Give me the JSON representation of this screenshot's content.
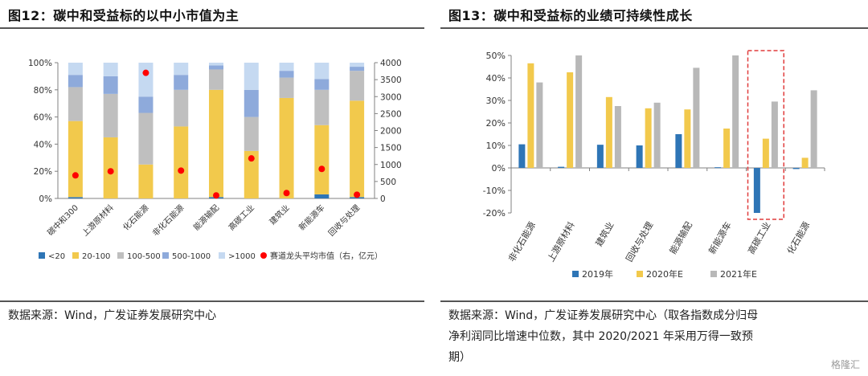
{
  "left": {
    "title": "图12：碳中和受益标的以中小市值为主",
    "source": "数据来源：Wind，广发证券发展研究中心",
    "colors": {
      "lt20": "#2e75b6",
      "c20_100": "#f2c94c",
      "c100_500": "#bfbfbf",
      "c500_1000": "#8eaadb",
      "gt1000": "#c5d9f1",
      "dot": "#ff0000"
    }
  },
  "right": {
    "title": "图13：碳中和受益标的业绩可持续性成长",
    "source_lines": [
      "数据来源：Wind，广发证券发展研究中心（取各指数成分归母",
      "净利润同比增速中位数，其中 2020/2021 年采用万得一致预",
      "期）"
    ],
    "colors": {
      "s2019": "#2e75b6",
      "s2020": "#f2c94c",
      "s2021": "#b8b8b8",
      "highlight": "#e03c3c"
    }
  },
  "watermark": "格隆汇",
  "chart_data": [
    {
      "type": "bar",
      "stacked": true,
      "title": "碳中和受益标的以中小市值为主",
      "categories": [
        "碳中和300",
        "上游原材料",
        "化石能源",
        "非化石能源",
        "能源输配",
        "高碳工业",
        "建筑业",
        "新能源车",
        "回收与处理"
      ],
      "series": [
        {
          "name": "<20",
          "values": [
            1,
            0,
            0,
            0,
            1,
            0,
            0,
            3,
            1
          ]
        },
        {
          "name": "20-100",
          "values": [
            56,
            45,
            25,
            53,
            79,
            35,
            74,
            51,
            71
          ]
        },
        {
          "name": "100-500",
          "values": [
            25,
            32,
            38,
            27,
            15,
            25,
            15,
            26,
            22
          ]
        },
        {
          "name": "500-1000",
          "values": [
            9,
            13,
            12,
            11,
            3,
            20,
            5,
            8,
            3
          ]
        },
        {
          "name": ">1000",
          "values": [
            9,
            10,
            25,
            9,
            2,
            20,
            6,
            12,
            3
          ]
        }
      ],
      "secondary_series": {
        "name": "赛道龙头平均市值（右，亿元）",
        "type": "scatter",
        "values": [
          680,
          800,
          3700,
          820,
          90,
          1180,
          160,
          870,
          110
        ]
      },
      "yticks_left": [
        "0%",
        "20%",
        "40%",
        "60%",
        "80%",
        "100%"
      ],
      "yticks_right": [
        "0",
        "500",
        "1000",
        "1500",
        "2000",
        "2500",
        "3000",
        "3500",
        "4000"
      ],
      "ylim": [
        0,
        100
      ],
      "ylim_right": [
        0,
        4000
      ],
      "legend": [
        "<20",
        "20-100",
        "100-500",
        "500-1000",
        ">1000",
        "赛道龙头平均市值（右，亿元）"
      ],
      "legend_position": "bottom"
    },
    {
      "type": "bar",
      "title": "碳中和受益标的业绩可持续性成长",
      "categories": [
        "非化石能源",
        "上游原材料",
        "建筑业",
        "回收与处理",
        "能源输配",
        "新能源车",
        "高碳工业",
        "化石能源"
      ],
      "series": [
        {
          "name": "2019年",
          "values": [
            10.5,
            0.5,
            10.3,
            10.0,
            15.0,
            0.3,
            -20.0,
            -0.5
          ]
        },
        {
          "name": "2020年E",
          "values": [
            46.5,
            42.5,
            31.5,
            26.5,
            26.0,
            17.5,
            13.0,
            4.5
          ]
        },
        {
          "name": "2021年E",
          "values": [
            38.0,
            50.0,
            27.5,
            29.0,
            44.5,
            50.0,
            29.5,
            34.5
          ]
        }
      ],
      "yticks": [
        "-20%",
        "-10%",
        "0%",
        "10%",
        "20%",
        "30%",
        "40%",
        "50%"
      ],
      "ylim": [
        -20,
        50
      ],
      "highlight_category": "高碳工业",
      "legend": [
        "2019年",
        "2020年E",
        "2021年E"
      ],
      "legend_position": "bottom"
    }
  ]
}
